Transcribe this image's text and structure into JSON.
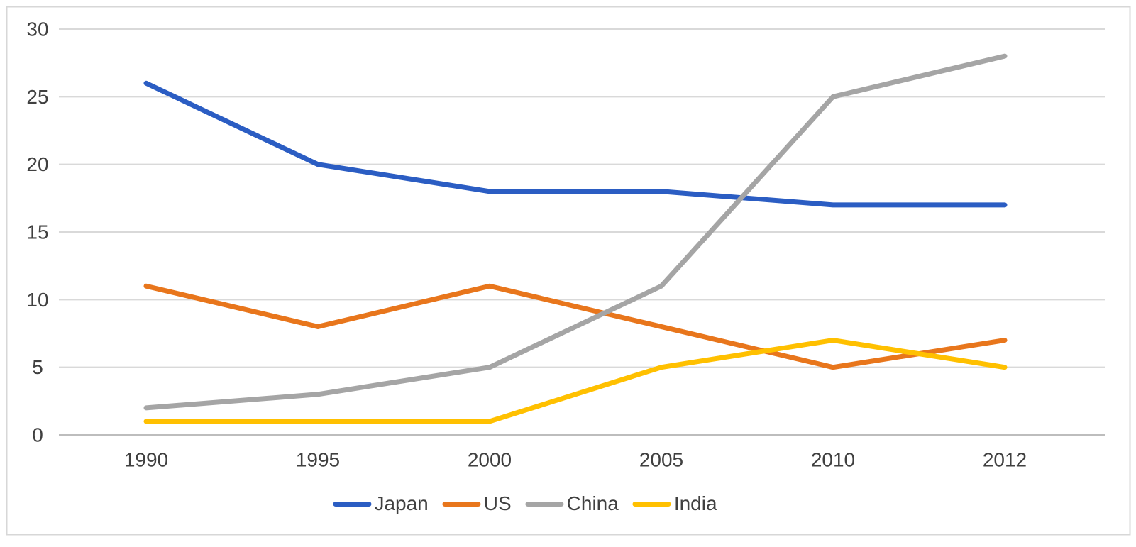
{
  "chart_data": {
    "type": "line",
    "title": "",
    "xlabel": "",
    "ylabel": "",
    "categories": [
      "1990",
      "1995",
      "2000",
      "2005",
      "2010",
      "2012"
    ],
    "series": [
      {
        "name": "Japan",
        "color": "#2B5DC3",
        "values": [
          26,
          20,
          18,
          18,
          17,
          17
        ]
      },
      {
        "name": "US",
        "color": "#E8761C",
        "values": [
          11,
          8,
          11,
          8,
          5,
          7
        ]
      },
      {
        "name": "China",
        "color": "#A5A5A5",
        "values": [
          2,
          3,
          5,
          11,
          25,
          28
        ]
      },
      {
        "name": "India",
        "color": "#FFC000",
        "values": [
          1,
          1,
          1,
          5,
          7,
          5
        ]
      }
    ],
    "y_ticks": [
      0,
      5,
      10,
      15,
      20,
      25,
      30
    ],
    "ylim": [
      0,
      30
    ],
    "grid": true,
    "legend_position": "bottom-center",
    "styles": {
      "axis_text_color": "#404040",
      "gridline_color": "#D9D9D9",
      "zero_line_color": "#BDBDBD",
      "frame_border_color": "#D7D7D7",
      "background_color": "#FFFFFF"
    }
  }
}
